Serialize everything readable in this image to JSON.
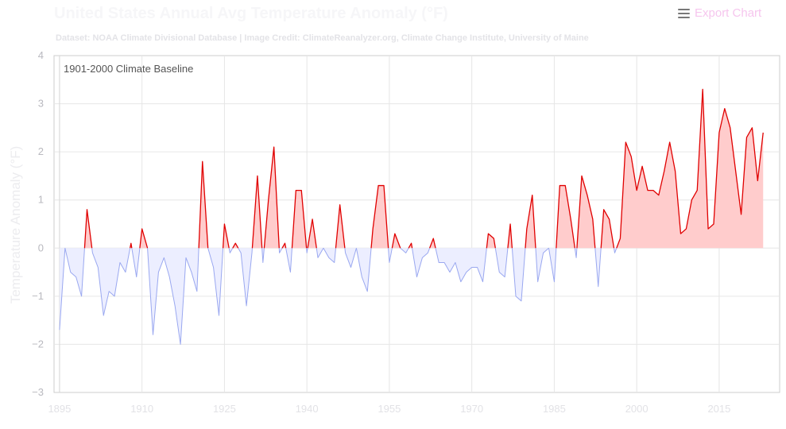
{
  "header": {
    "title": "United States Annual Avg Temperature Anomaly (°F)",
    "subtitle": "Dataset: NOAA Climate Divisional Database | Image Credit: ClimateReanalyzer.org, Climate Change Institute, University of Maine",
    "export_label": "Export Chart",
    "export_icon": "hamburger-menu-icon"
  },
  "chart_data": {
    "type": "area",
    "title": "United States Annual Avg Temperature Anomaly (°F)",
    "annotation": "1901-2000 Climate Baseline",
    "xlabel": "",
    "ylabel": "Temperature Anomaly (°F)",
    "xlim": [
      1894,
      2026
    ],
    "ylim": [
      -3,
      4
    ],
    "xticks": [
      "1895",
      "1910",
      "1925",
      "1940",
      "1955",
      "1970",
      "1985",
      "2000",
      "2015"
    ],
    "yticks": [
      "−3",
      "−2",
      "−1",
      "0",
      "1",
      "2",
      "3",
      "4"
    ],
    "grid": true,
    "colors": {
      "positive_line": "#e00000",
      "positive_fill": "#ffcccc",
      "negative_line": "#9aa8f0",
      "negative_fill": "#eceeff",
      "grid": "#e6e6e6"
    },
    "x": [
      1895,
      1896,
      1897,
      1898,
      1899,
      1900,
      1901,
      1902,
      1903,
      1904,
      1905,
      1906,
      1907,
      1908,
      1909,
      1910,
      1911,
      1912,
      1913,
      1914,
      1915,
      1916,
      1917,
      1918,
      1919,
      1920,
      1921,
      1922,
      1923,
      1924,
      1925,
      1926,
      1927,
      1928,
      1929,
      1930,
      1931,
      1932,
      1933,
      1934,
      1935,
      1936,
      1937,
      1938,
      1939,
      1940,
      1941,
      1942,
      1943,
      1944,
      1945,
      1946,
      1947,
      1948,
      1949,
      1950,
      1951,
      1952,
      1953,
      1954,
      1955,
      1956,
      1957,
      1958,
      1959,
      1960,
      1961,
      1962,
      1963,
      1964,
      1965,
      1966,
      1967,
      1968,
      1969,
      1970,
      1971,
      1972,
      1973,
      1974,
      1975,
      1976,
      1977,
      1978,
      1979,
      1980,
      1981,
      1982,
      1983,
      1984,
      1985,
      1986,
      1987,
      1988,
      1989,
      1990,
      1991,
      1992,
      1993,
      1994,
      1995,
      1996,
      1997,
      1998,
      1999,
      2000,
      2001,
      2002,
      2003,
      2004,
      2005,
      2006,
      2007,
      2008,
      2009,
      2010,
      2011,
      2012,
      2013,
      2014,
      2015,
      2016,
      2017,
      2018,
      2019,
      2020,
      2021,
      2022,
      2023
    ],
    "values": [
      -1.7,
      0.0,
      -0.5,
      -0.6,
      -1.0,
      0.8,
      -0.1,
      -0.4,
      -1.4,
      -0.9,
      -1.0,
      -0.3,
      -0.5,
      0.1,
      -0.6,
      0.4,
      0.0,
      -1.8,
      -0.5,
      -0.2,
      -0.6,
      -1.2,
      -2.0,
      -0.2,
      -0.5,
      -0.9,
      1.8,
      0.0,
      -0.4,
      -1.4,
      0.5,
      -0.1,
      0.1,
      -0.1,
      -1.2,
      -0.1,
      1.5,
      -0.3,
      1.0,
      2.1,
      -0.1,
      0.1,
      -0.5,
      1.2,
      1.2,
      -0.1,
      0.6,
      -0.2,
      0.0,
      -0.2,
      -0.3,
      0.9,
      -0.1,
      -0.4,
      0.0,
      -0.6,
      -0.9,
      0.4,
      1.3,
      1.3,
      -0.3,
      0.3,
      0.0,
      -0.1,
      0.1,
      -0.6,
      -0.2,
      -0.1,
      0.2,
      -0.3,
      -0.3,
      -0.5,
      -0.3,
      -0.7,
      -0.5,
      -0.4,
      -0.4,
      -0.7,
      0.3,
      0.2,
      -0.5,
      -0.6,
      0.5,
      -1.0,
      -1.1,
      0.4,
      1.1,
      -0.7,
      -0.1,
      0.0,
      -0.7,
      1.3,
      1.3,
      0.6,
      -0.2,
      1.5,
      1.1,
      0.6,
      -0.8,
      0.8,
      0.6,
      -0.1,
      0.2,
      2.2,
      1.9,
      1.2,
      1.7,
      1.2,
      1.2,
      1.1,
      1.6,
      2.2,
      1.6,
      0.3,
      0.4,
      1.0,
      1.2,
      3.3,
      0.4,
      0.5,
      2.4,
      2.9,
      2.5,
      1.6,
      0.7,
      2.3,
      2.5,
      1.4,
      2.4
    ]
  }
}
